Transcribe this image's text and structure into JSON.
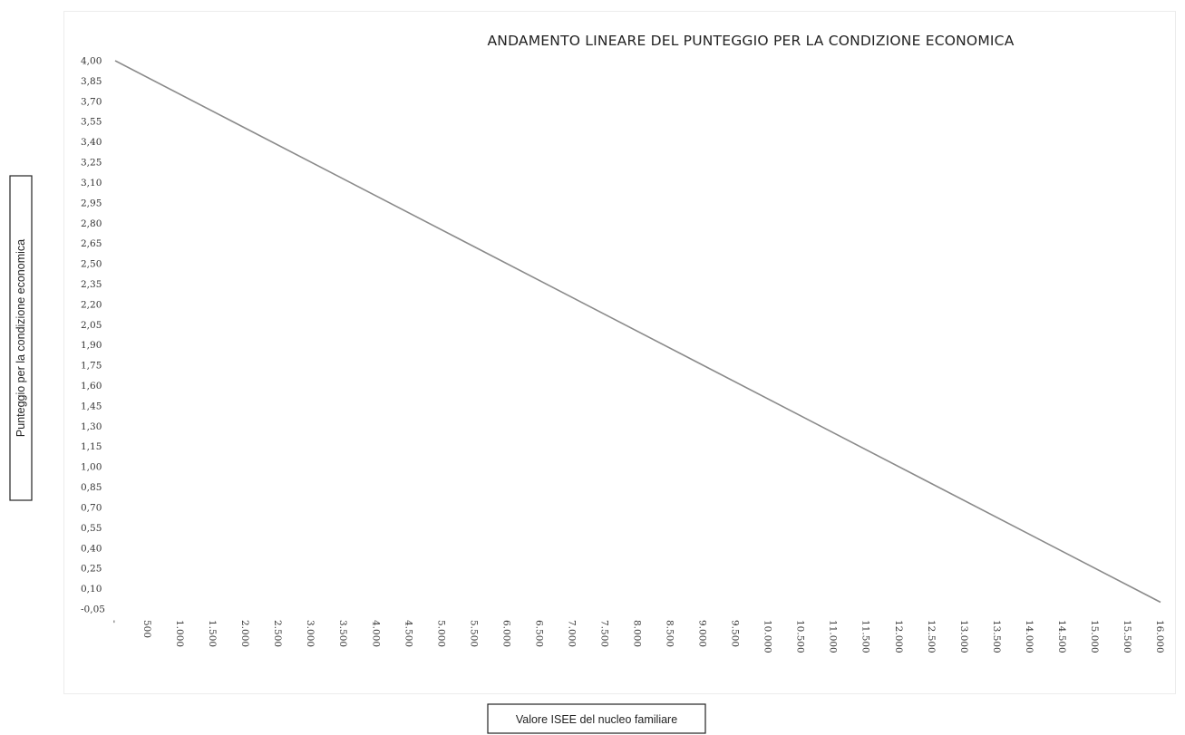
{
  "chart_data": {
    "type": "line",
    "title": "ANDAMENTO LINEARE DEL PUNTEGGIO PER LA CONDIZIONE ECONOMICA",
    "xlabel": "Valore ISEE del nucleo familiare",
    "ylabel": "Punteggio per la condizione economica",
    "x_tick_labels": [
      "-",
      "500",
      "1.000",
      "1.500",
      "2.000",
      "2.500",
      "3.000",
      "3.500",
      "4.000",
      "4.500",
      "5.000",
      "5.500",
      "6.000",
      "6.500",
      "7.000",
      "7.500",
      "8.000",
      "8.500",
      "9.000",
      "9.500",
      "10.000",
      "10.500",
      "11.000",
      "11.500",
      "12.000",
      "12.500",
      "13.000",
      "13.500",
      "14.000",
      "14.500",
      "15.000",
      "15.500",
      "16.000"
    ],
    "y_tick_labels": [
      "4,00",
      "3,85",
      "3,70",
      "3,55",
      "3,40",
      "3,25",
      "3,10",
      "2,95",
      "2,80",
      "2,65",
      "2,50",
      "2,35",
      "2,20",
      "2,05",
      "1,90",
      "1,75",
      "1,60",
      "1,45",
      "1,30",
      "1,15",
      "1,00",
      "0,85",
      "0,70",
      "0,55",
      "0,40",
      "0,25",
      "0,10",
      "-0,05"
    ],
    "xlim": [
      0,
      16000
    ],
    "ylim": [
      -0.05,
      4.0
    ],
    "series": [
      {
        "x": [
          0,
          16000
        ],
        "y": [
          4.0,
          0.0
        ]
      }
    ],
    "grid": false,
    "legend": "none",
    "line_color": "#8a8a8a"
  }
}
